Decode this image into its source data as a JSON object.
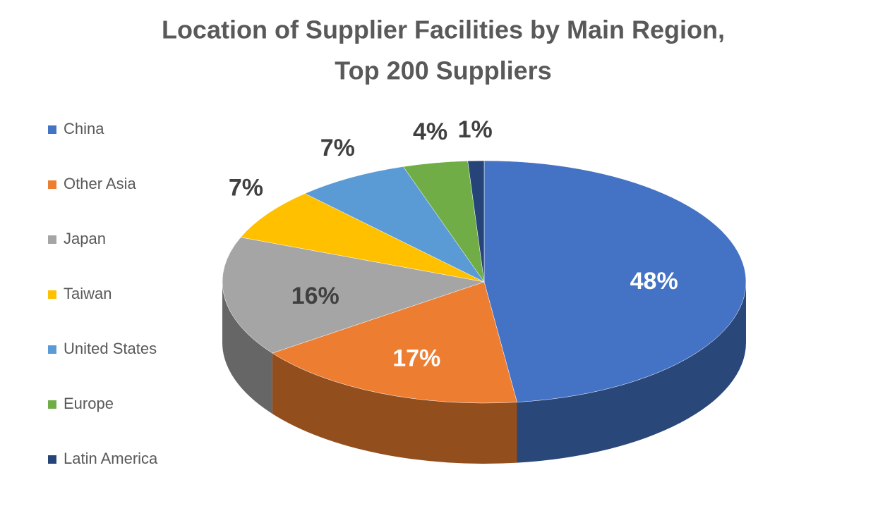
{
  "chart_data": {
    "type": "pie",
    "title": [
      "Location of Supplier Facilities by Main Region,",
      "Top 200 Suppliers"
    ],
    "categories": [
      "China",
      "Other Asia",
      "Japan",
      "Taiwan",
      "United States",
      "Europe",
      "Latin America"
    ],
    "values": [
      48,
      17,
      16,
      7,
      7,
      4,
      1
    ],
    "value_labels": [
      "48%",
      "17%",
      "16%",
      "7%",
      "7%",
      "4%",
      "1%"
    ],
    "colors": [
      "#4472c4",
      "#ed7d31",
      "#a5a5a5",
      "#ffc000",
      "#5b9bd5",
      "#70ad47",
      "#264478"
    ],
    "legend": "left"
  }
}
